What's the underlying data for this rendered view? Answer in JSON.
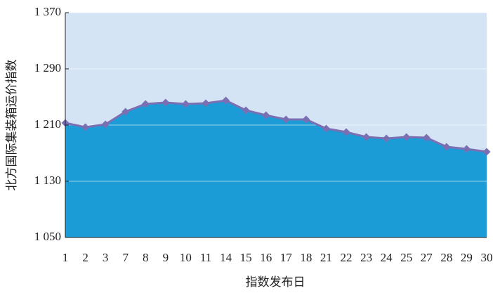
{
  "chart_data": {
    "type": "area",
    "y_label": "北方国际集装箱运价指数",
    "x_label": "指数发布日",
    "categories": [
      "1",
      "2",
      "3",
      "7",
      "8",
      "9",
      "10",
      "11",
      "14",
      "15",
      "16",
      "17",
      "18",
      "21",
      "22",
      "23",
      "24",
      "25",
      "27",
      "28",
      "29",
      "30"
    ],
    "values": [
      1213,
      1207,
      1211,
      1229,
      1240,
      1242,
      1240,
      1241,
      1245,
      1231,
      1224,
      1218,
      1218,
      1205,
      1200,
      1193,
      1191,
      1193,
      1192,
      1179,
      1176,
      1172
    ],
    "color": "#7a6fb3",
    "fill_color": "#1c9cd6",
    "background_color": "#d5e4f5",
    "ylim": [
      1050,
      1370
    ],
    "yticks": [
      {
        "value": 1050,
        "label": "1 050"
      },
      {
        "value": 1130,
        "label": "1 130"
      },
      {
        "value": 1210,
        "label": "1 210"
      },
      {
        "value": 1290,
        "label": "1 290"
      },
      {
        "value": 1370,
        "label": "1 370"
      }
    ],
    "grid": true
  }
}
